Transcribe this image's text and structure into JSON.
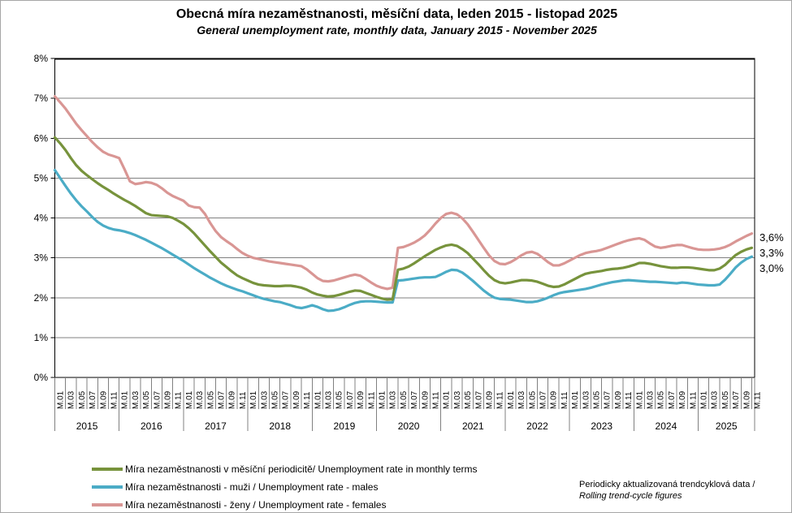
{
  "header": {
    "title": "Obecná míra nezaměstnanosti, měsíční data, leden 2015 - listopad 2025",
    "subtitle": "General unemployment rate, monthly data, January 2015 - November 2025"
  },
  "axis": {
    "y_labels": [
      "8%",
      "7%",
      "6%",
      "5%",
      "4%",
      "3%",
      "2%",
      "1%",
      "0%"
    ],
    "month_labels": [
      "M.01",
      "M.03",
      "M.05",
      "M.07",
      "M.09",
      "M.11"
    ],
    "years": [
      "2015",
      "2016",
      "2017",
      "2018",
      "2019",
      "2020",
      "2021",
      "2022",
      "2023",
      "2024",
      "2025"
    ]
  },
  "end_labels": [
    {
      "text": "3,6%",
      "series": "females"
    },
    {
      "text": "3,3%",
      "series": "overall"
    },
    {
      "text": "3,0%",
      "series": "males"
    }
  ],
  "legend": {
    "items": [
      {
        "label": "Míra nezaměstnanosti v měsíční periodicitě/ Unemployment rate in monthly terms",
        "color": "#77933C"
      },
      {
        "label": "Míra nezaměstnanosti - muži / Unemployment rate - males",
        "color": "#4BACC6"
      },
      {
        "label": "Míra nezaměstnanosti - ženy / Unemployment rate - females",
        "color": "#D99694"
      }
    ]
  },
  "note": {
    "line1": "Periodicky aktualizovaná trendcyklová data /",
    "line2": "Rolling trend-cycle figures"
  },
  "colors": {
    "grid": "#808080",
    "axis": "#000000",
    "tick": "#808080"
  },
  "chart_data": {
    "type": "line",
    "title": "Obecná míra nezaměstnanosti, měsíční data, leden 2015 - listopad 2025",
    "x_start": "2015-01",
    "x_end": "2025-11",
    "x_interval": "month",
    "n_points": 131,
    "ylim": [
      0,
      8
    ],
    "y_tick_step": 1,
    "grid": true,
    "legend_position": "bottom-left",
    "series": [
      {
        "name": "Míra nezaměstnanosti v měsíční periodicitě/ Unemployment rate in monthly terms",
        "color": "#77933C",
        "values": [
          6.02,
          5.87,
          5.7,
          5.5,
          5.32,
          5.18,
          5.07,
          4.97,
          4.87,
          4.78,
          4.7,
          4.61,
          4.53,
          4.45,
          4.38,
          4.3,
          4.21,
          4.12,
          4.07,
          4.06,
          4.05,
          4.04,
          4.0,
          3.93,
          3.85,
          3.74,
          3.61,
          3.46,
          3.31,
          3.16,
          3.02,
          2.88,
          2.77,
          2.66,
          2.56,
          2.49,
          2.43,
          2.37,
          2.33,
          2.31,
          2.3,
          2.29,
          2.29,
          2.3,
          2.3,
          2.28,
          2.25,
          2.2,
          2.13,
          2.08,
          2.05,
          2.03,
          2.04,
          2.07,
          2.11,
          2.15,
          2.18,
          2.17,
          2.12,
          2.07,
          2.02,
          1.98,
          1.95,
          1.96,
          2.7,
          2.73,
          2.78,
          2.86,
          2.95,
          3.04,
          3.12,
          3.2,
          3.26,
          3.31,
          3.33,
          3.3,
          3.22,
          3.12,
          2.98,
          2.84,
          2.69,
          2.55,
          2.44,
          2.38,
          2.36,
          2.38,
          2.41,
          2.44,
          2.44,
          2.43,
          2.4,
          2.35,
          2.3,
          2.27,
          2.28,
          2.33,
          2.4,
          2.47,
          2.54,
          2.6,
          2.63,
          2.65,
          2.67,
          2.7,
          2.72,
          2.73,
          2.75,
          2.78,
          2.82,
          2.87,
          2.87,
          2.85,
          2.82,
          2.79,
          2.77,
          2.75,
          2.75,
          2.76,
          2.76,
          2.75,
          2.73,
          2.71,
          2.69,
          2.69,
          2.73,
          2.82,
          2.95,
          3.07,
          3.15,
          3.21,
          3.25
        ]
      },
      {
        "name": "Míra nezaměstnanosti - muži / Unemployment rate - males",
        "color": "#4BACC6",
        "values": [
          5.2,
          5.0,
          4.8,
          4.61,
          4.44,
          4.29,
          4.16,
          4.02,
          3.9,
          3.81,
          3.75,
          3.71,
          3.69,
          3.66,
          3.62,
          3.57,
          3.51,
          3.45,
          3.38,
          3.31,
          3.24,
          3.16,
          3.08,
          3.0,
          2.92,
          2.83,
          2.74,
          2.66,
          2.58,
          2.5,
          2.43,
          2.36,
          2.3,
          2.25,
          2.2,
          2.16,
          2.11,
          2.06,
          2.01,
          1.97,
          1.94,
          1.91,
          1.89,
          1.85,
          1.81,
          1.76,
          1.74,
          1.77,
          1.81,
          1.77,
          1.71,
          1.67,
          1.68,
          1.71,
          1.76,
          1.82,
          1.87,
          1.9,
          1.91,
          1.91,
          1.9,
          1.89,
          1.88,
          1.88,
          2.43,
          2.44,
          2.46,
          2.48,
          2.5,
          2.51,
          2.51,
          2.52,
          2.58,
          2.65,
          2.7,
          2.69,
          2.63,
          2.53,
          2.42,
          2.3,
          2.18,
          2.08,
          2.0,
          1.97,
          1.96,
          1.95,
          1.93,
          1.91,
          1.89,
          1.89,
          1.91,
          1.95,
          2.0,
          2.06,
          2.11,
          2.14,
          2.16,
          2.18,
          2.2,
          2.22,
          2.25,
          2.29,
          2.33,
          2.36,
          2.39,
          2.41,
          2.43,
          2.44,
          2.43,
          2.42,
          2.41,
          2.4,
          2.4,
          2.39,
          2.38,
          2.37,
          2.36,
          2.38,
          2.37,
          2.35,
          2.33,
          2.32,
          2.31,
          2.31,
          2.33,
          2.45,
          2.6,
          2.76,
          2.88,
          2.97,
          3.03
        ]
      },
      {
        "name": "Míra nezaměstnanosti - ženy / Unemployment rate - females",
        "color": "#D99694",
        "values": [
          7.05,
          6.9,
          6.74,
          6.55,
          6.36,
          6.2,
          6.05,
          5.9,
          5.77,
          5.66,
          5.59,
          5.55,
          5.5,
          5.22,
          4.92,
          4.85,
          4.87,
          4.9,
          4.88,
          4.83,
          4.74,
          4.63,
          4.55,
          4.49,
          4.43,
          4.31,
          4.27,
          4.26,
          4.1,
          3.87,
          3.67,
          3.52,
          3.42,
          3.33,
          3.22,
          3.12,
          3.05,
          3.0,
          2.97,
          2.94,
          2.91,
          2.89,
          2.87,
          2.85,
          2.83,
          2.81,
          2.79,
          2.71,
          2.6,
          2.49,
          2.42,
          2.41,
          2.43,
          2.47,
          2.51,
          2.55,
          2.58,
          2.55,
          2.47,
          2.38,
          2.3,
          2.25,
          2.22,
          2.25,
          3.25,
          3.27,
          3.32,
          3.38,
          3.46,
          3.56,
          3.7,
          3.86,
          4.0,
          4.1,
          4.13,
          4.09,
          3.99,
          3.84,
          3.65,
          3.45,
          3.25,
          3.06,
          2.92,
          2.85,
          2.84,
          2.89,
          2.97,
          3.06,
          3.13,
          3.15,
          3.1,
          3.0,
          2.89,
          2.81,
          2.81,
          2.86,
          2.93,
          3.0,
          3.07,
          3.12,
          3.15,
          3.17,
          3.2,
          3.25,
          3.3,
          3.35,
          3.4,
          3.44,
          3.47,
          3.49,
          3.45,
          3.36,
          3.28,
          3.25,
          3.27,
          3.3,
          3.32,
          3.32,
          3.28,
          3.24,
          3.21,
          3.2,
          3.2,
          3.21,
          3.23,
          3.27,
          3.33,
          3.41,
          3.48,
          3.55,
          3.61
        ]
      }
    ]
  }
}
